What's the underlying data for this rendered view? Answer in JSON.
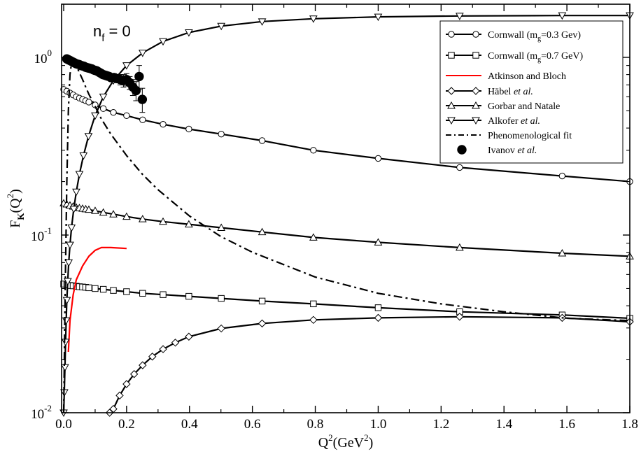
{
  "chart_data": {
    "type": "line",
    "annotation": {
      "base": "n",
      "sub": "f",
      "rest": " = 0"
    },
    "xlabel": {
      "base": "Q",
      "sup": "2",
      "unit_prefix": "(GeV",
      "unit_sup": "2",
      "unit_suffix": ")"
    },
    "ylabel": {
      "base": "F",
      "sub": "K",
      "arg_prefix": "(Q",
      "arg_sup": "2",
      "arg_suffix": ")"
    },
    "x_scale": "linear",
    "y_scale": "log",
    "xlim": [
      -0.02,
      1.8
    ],
    "ylim": [
      0.01,
      2.2
    ],
    "x_ticks": [
      0.0,
      0.2,
      0.4,
      0.6,
      0.8,
      1.0,
      1.2,
      1.4,
      1.6,
      1.8
    ],
    "x_tick_labels": [
      "0.0",
      "0.2",
      "0.4",
      "0.6",
      "0.8",
      "1.0",
      "1.2",
      "1.4",
      "1.6",
      "1.8"
    ],
    "y_ticks": [
      0.01,
      0.1,
      1.0
    ],
    "y_tick_labels": [
      {
        "base": "10",
        "exp": "-2"
      },
      {
        "base": "10",
        "exp": "-1"
      },
      {
        "base": "10",
        "exp": "0"
      }
    ],
    "grid": false,
    "legend_position": "top-right",
    "series": [
      {
        "name": {
          "pre": "Cornwall (m",
          "sub": "g",
          "post": "=0.3 Gev)"
        },
        "color": "#000000",
        "line": "solid",
        "marker": "circle-open",
        "x": [
          0.0,
          0.01,
          0.02,
          0.03,
          0.04,
          0.05,
          0.06,
          0.07,
          0.08,
          0.1,
          0.126,
          0.158,
          0.2,
          0.251,
          0.316,
          0.398,
          0.501,
          0.631,
          0.794,
          1.0,
          1.259,
          1.585,
          1.8
        ],
        "y": [
          0.66,
          0.645,
          0.63,
          0.615,
          0.6,
          0.59,
          0.58,
          0.57,
          0.56,
          0.54,
          0.515,
          0.49,
          0.47,
          0.445,
          0.42,
          0.395,
          0.37,
          0.34,
          0.3,
          0.27,
          0.24,
          0.215,
          0.2
        ],
        "marker_count": 22
      },
      {
        "name": {
          "pre": "Cornwall (m",
          "sub": "g",
          "post": "=0.7 GeV)"
        },
        "color": "#000000",
        "line": "solid",
        "marker": "square-open",
        "x": [
          0.0,
          0.01,
          0.02,
          0.03,
          0.04,
          0.05,
          0.06,
          0.07,
          0.08,
          0.1,
          0.126,
          0.158,
          0.2,
          0.251,
          0.316,
          0.398,
          0.501,
          0.631,
          0.794,
          1.0,
          1.259,
          1.585,
          1.8
        ],
        "y": [
          0.053,
          0.0525,
          0.052,
          0.0518,
          0.0515,
          0.0512,
          0.051,
          0.0508,
          0.0505,
          0.05,
          0.0495,
          0.0488,
          0.048,
          0.047,
          0.0462,
          0.0452,
          0.044,
          0.0425,
          0.041,
          0.039,
          0.037,
          0.0355,
          0.034
        ],
        "marker_count": 22
      },
      {
        "name": {
          "pre": "Atkinson and Bloch",
          "sub": "",
          "post": ""
        },
        "color": "#ff0000",
        "line": "solid",
        "marker": "none",
        "x": [
          0.015,
          0.02,
          0.03,
          0.04,
          0.06,
          0.08,
          0.1,
          0.12,
          0.15,
          0.2
        ],
        "y": [
          0.022,
          0.033,
          0.046,
          0.056,
          0.067,
          0.076,
          0.082,
          0.085,
          0.085,
          0.084
        ]
      },
      {
        "name": {
          "pre": "Häbel ",
          "italic": "et al.",
          "post": ""
        },
        "color": "#000000",
        "line": "solid",
        "marker": "diamond-open",
        "x": [
          0.146,
          0.158,
          0.178,
          0.2,
          0.224,
          0.251,
          0.282,
          0.316,
          0.355,
          0.398,
          0.501,
          0.631,
          0.794,
          1.0,
          1.259,
          1.585,
          1.8
        ],
        "y": [
          0.0095,
          0.0105,
          0.0125,
          0.0145,
          0.0165,
          0.0185,
          0.0207,
          0.0228,
          0.0248,
          0.0268,
          0.0298,
          0.0318,
          0.0333,
          0.0342,
          0.0347,
          0.0342,
          0.0325
        ],
        "marker_count": 13
      },
      {
        "name": {
          "pre": "Gorbar and Natale",
          "sub": "",
          "post": ""
        },
        "color": "#000000",
        "line": "solid",
        "marker": "triangle-up-open",
        "x": [
          0.0,
          0.01,
          0.02,
          0.03,
          0.04,
          0.05,
          0.06,
          0.07,
          0.08,
          0.1,
          0.126,
          0.158,
          0.2,
          0.251,
          0.316,
          0.398,
          0.501,
          0.631,
          0.794,
          1.0,
          1.259,
          1.585,
          1.8
        ],
        "y": [
          0.151,
          0.149,
          0.147,
          0.145,
          0.143,
          0.142,
          0.141,
          0.14,
          0.139,
          0.137,
          0.134,
          0.131,
          0.127,
          0.123,
          0.119,
          0.115,
          0.11,
          0.104,
          0.097,
          0.091,
          0.085,
          0.079,
          0.076
        ],
        "marker_count": 22
      },
      {
        "name": {
          "pre": "Alkofer ",
          "italic": "et al.",
          "post": ""
        },
        "color": "#000000",
        "line": "solid",
        "marker": "triangle-down-open",
        "x": [
          0.0,
          0.002,
          0.004,
          0.006,
          0.008,
          0.01,
          0.013,
          0.016,
          0.02,
          0.025,
          0.032,
          0.04,
          0.05,
          0.063,
          0.079,
          0.1,
          0.126,
          0.158,
          0.2,
          0.251,
          0.316,
          0.398,
          0.501,
          0.631,
          0.794,
          1.0,
          1.259,
          1.585,
          1.8
        ],
        "y": [
          0.01,
          0.013,
          0.018,
          0.025,
          0.033,
          0.043,
          0.055,
          0.07,
          0.088,
          0.11,
          0.14,
          0.175,
          0.22,
          0.28,
          0.36,
          0.47,
          0.6,
          0.74,
          0.9,
          1.06,
          1.23,
          1.38,
          1.5,
          1.59,
          1.65,
          1.69,
          1.71,
          1.72,
          1.72
        ],
        "marker_count": 29
      },
      {
        "name": {
          "pre": "Phenomenological fit",
          "sub": "",
          "post": ""
        },
        "color": "#000000",
        "line": "dashdot",
        "marker": "none",
        "x": [
          0.0,
          0.005,
          0.01,
          0.015,
          0.02,
          0.025,
          0.03,
          0.04,
          0.05,
          0.06,
          0.07,
          0.08,
          0.1,
          0.12,
          0.15,
          0.2,
          0.25,
          0.3,
          0.4,
          0.5,
          0.6,
          0.8,
          1.0,
          1.2,
          1.4,
          1.6,
          1.8
        ],
        "y": [
          0.01,
          0.05,
          0.2,
          0.5,
          0.8,
          0.93,
          0.95,
          0.9,
          0.82,
          0.75,
          0.68,
          0.62,
          0.53,
          0.45,
          0.37,
          0.28,
          0.22,
          0.18,
          0.128,
          0.098,
          0.08,
          0.058,
          0.047,
          0.041,
          0.037,
          0.034,
          0.033
        ]
      },
      {
        "name": {
          "pre": "Ivanov  ",
          "italic": "et al.",
          "post": ""
        },
        "color": "#000000",
        "line": "none",
        "marker": "circle-filled",
        "x": [
          0.01,
          0.015,
          0.02,
          0.025,
          0.03,
          0.035,
          0.04,
          0.045,
          0.05,
          0.055,
          0.06,
          0.065,
          0.07,
          0.075,
          0.08,
          0.085,
          0.09,
          0.095,
          0.1,
          0.105,
          0.11,
          0.115,
          0.12,
          0.125,
          0.13,
          0.135,
          0.14,
          0.145,
          0.15,
          0.16,
          0.17,
          0.18,
          0.19,
          0.2,
          0.21,
          0.22,
          0.23,
          0.24,
          0.25
        ],
        "y": [
          0.98,
          0.97,
          0.96,
          0.95,
          0.94,
          0.93,
          0.92,
          0.915,
          0.91,
          0.9,
          0.895,
          0.89,
          0.88,
          0.875,
          0.87,
          0.865,
          0.86,
          0.85,
          0.845,
          0.84,
          0.83,
          0.82,
          0.81,
          0.8,
          0.795,
          0.79,
          0.785,
          0.78,
          0.77,
          0.77,
          0.76,
          0.75,
          0.74,
          0.75,
          0.72,
          0.68,
          0.65,
          0.78,
          0.58
        ],
        "yerr": [
          0.01,
          0.01,
          0.01,
          0.01,
          0.01,
          0.01,
          0.01,
          0.01,
          0.01,
          0.01,
          0.01,
          0.01,
          0.01,
          0.01,
          0.01,
          0.01,
          0.015,
          0.015,
          0.015,
          0.015,
          0.02,
          0.02,
          0.02,
          0.02,
          0.02,
          0.02,
          0.03,
          0.03,
          0.03,
          0.04,
          0.04,
          0.05,
          0.06,
          0.06,
          0.06,
          0.07,
          0.08,
          0.12,
          0.09
        ]
      }
    ]
  }
}
